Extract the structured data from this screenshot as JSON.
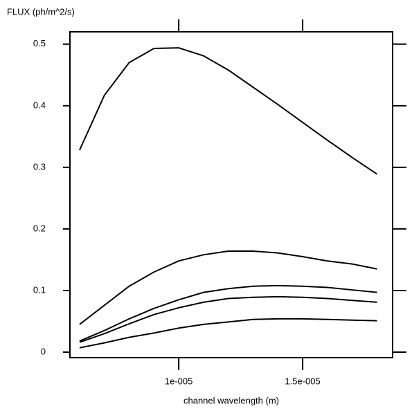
{
  "chart_data": {
    "type": "line",
    "ylabel": "FLUX (ph/m^2/s)",
    "xlabel": "channel wavelength (m)",
    "x": [
      6e-06,
      7e-06,
      8e-06,
      9e-06,
      1e-05,
      1.1e-05,
      1.2e-05,
      1.3e-05,
      1.4e-05,
      1.5e-05,
      1.6e-05,
      1.7e-05,
      1.8e-05
    ],
    "series": [
      {
        "color": "#000000",
        "values": [
          0.328,
          0.417,
          0.47,
          0.493,
          0.494,
          0.481,
          0.458,
          0.43,
          0.402,
          0.373,
          0.344,
          0.316,
          0.289
        ]
      },
      {
        "color": "#000000",
        "values": [
          0.045,
          0.076,
          0.107,
          0.13,
          0.148,
          0.158,
          0.164,
          0.164,
          0.161,
          0.155,
          0.148,
          0.143,
          0.135
        ]
      },
      {
        "color": "#000000",
        "values": [
          0.018,
          0.035,
          0.054,
          0.071,
          0.085,
          0.097,
          0.103,
          0.107,
          0.108,
          0.107,
          0.105,
          0.101,
          0.097
        ]
      },
      {
        "color": "#000000",
        "values": [
          0.016,
          0.03,
          0.046,
          0.061,
          0.072,
          0.081,
          0.087,
          0.089,
          0.09,
          0.089,
          0.087,
          0.084,
          0.081
        ]
      },
      {
        "color": "#000000",
        "values": [
          0.007,
          0.015,
          0.024,
          0.031,
          0.039,
          0.045,
          0.049,
          0.053,
          0.054,
          0.054,
          0.053,
          0.052,
          0.051
        ]
      }
    ],
    "xlim": [
      5.61e-06,
      1.863e-05
    ],
    "ylim": [
      -0.009,
      0.52
    ],
    "xticks": [
      {
        "value": 1e-05,
        "label": "1e-005"
      },
      {
        "value": 1.5e-05,
        "label": "1.5e-005"
      }
    ],
    "yticks": [
      0,
      0.1,
      0.2,
      0.3,
      0.4,
      0.5
    ],
    "grid": false
  }
}
